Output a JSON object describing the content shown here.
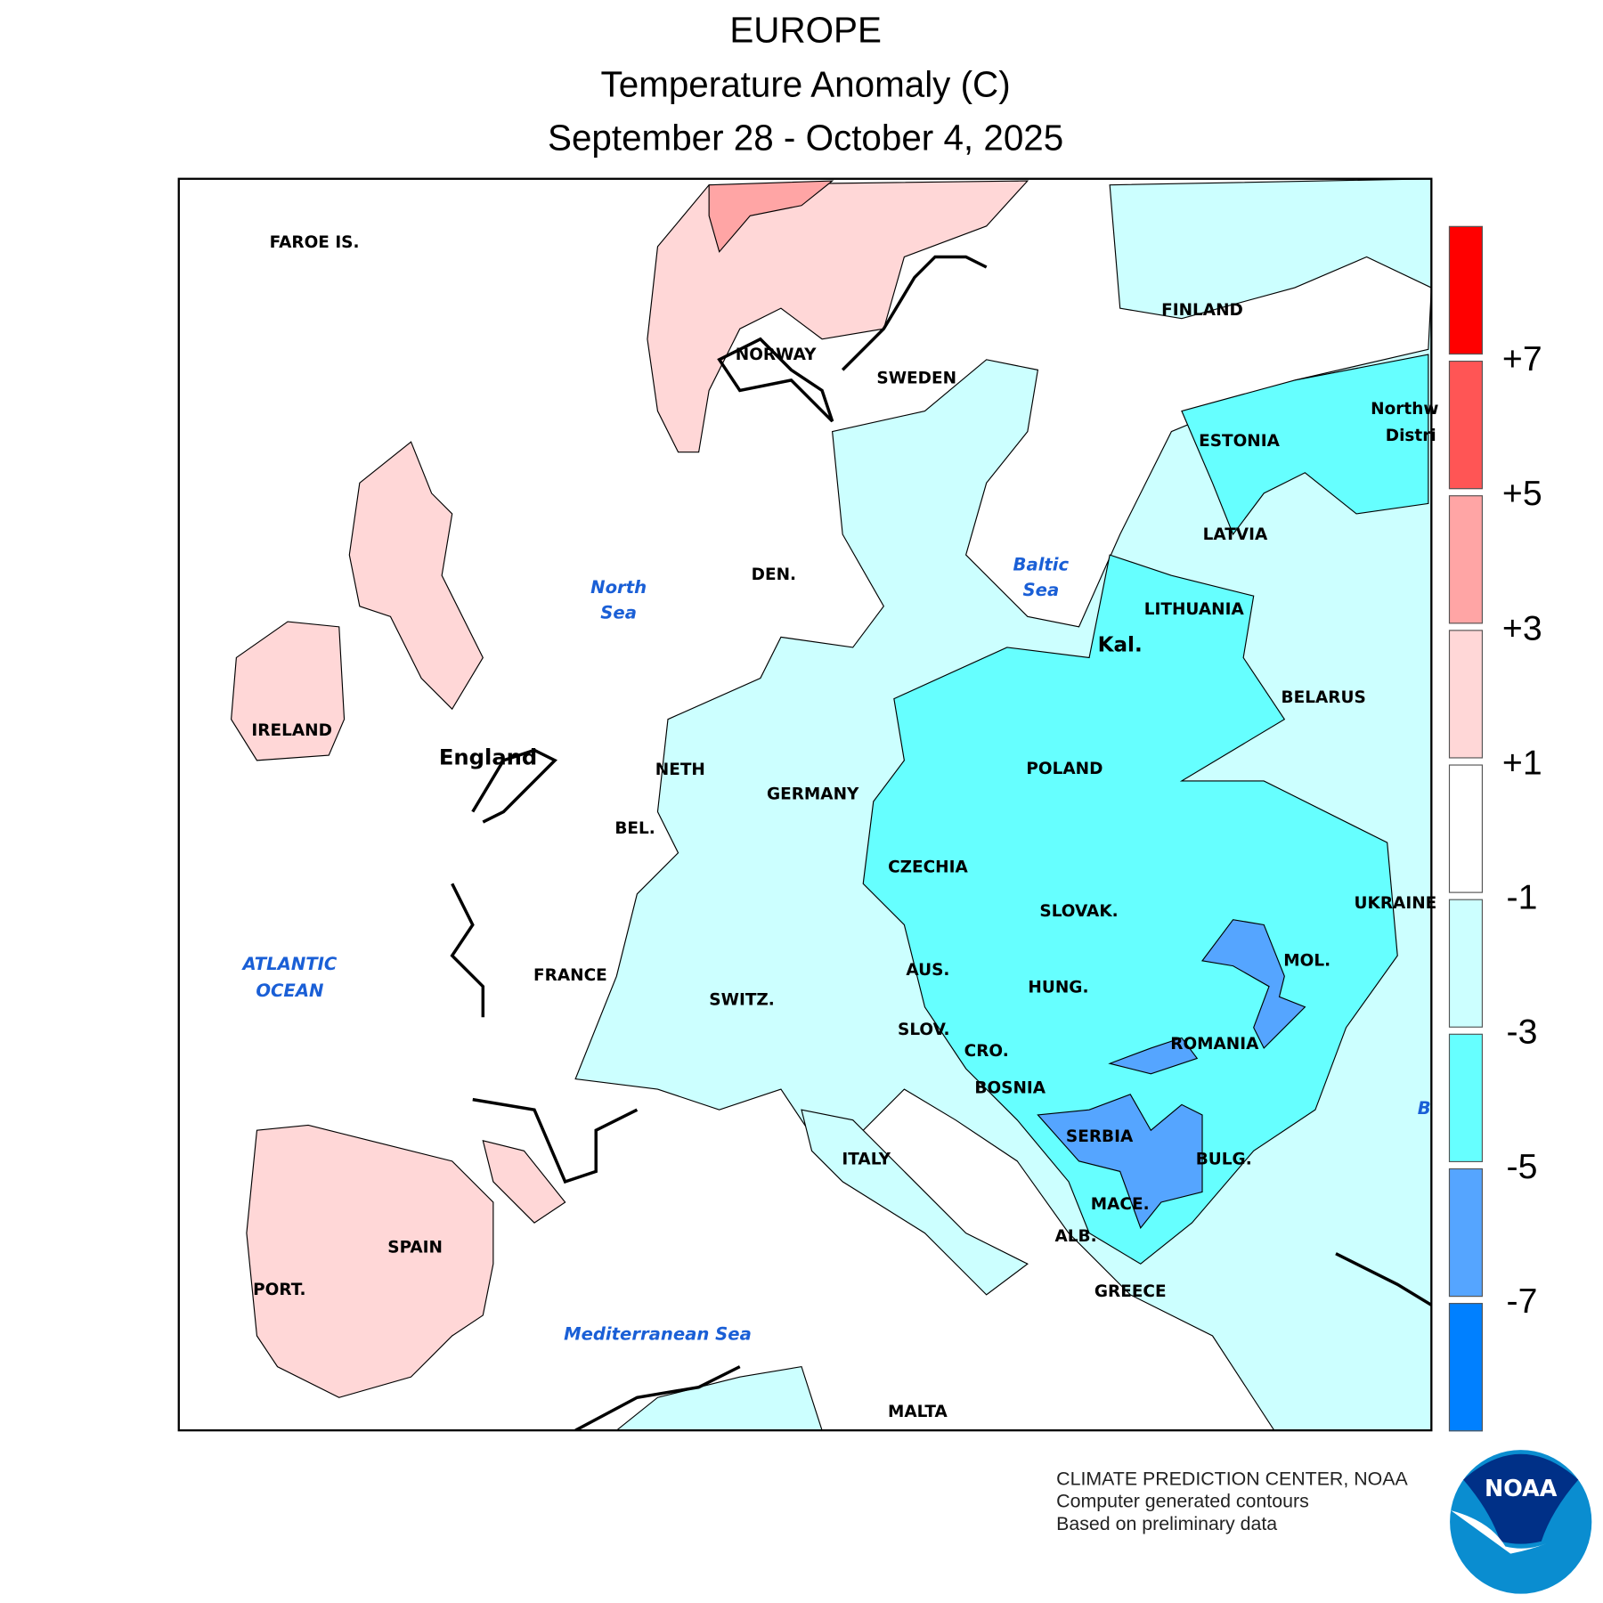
{
  "title": {
    "line1": "EUROPE",
    "line2": "Temperature Anomaly (C)",
    "line3": "September 28 - October 4, 2025"
  },
  "legend": {
    "colors": [
      "#ff0000",
      "#ff5555",
      "#ffa5a5",
      "#ffd7d7",
      "#ffffff",
      "#ccffff",
      "#66ffff",
      "#55a5ff",
      "#0080ff"
    ],
    "labels": [
      "+7",
      "+5",
      "+3",
      "+1",
      "-1",
      "-3",
      "-5",
      "-7"
    ]
  },
  "map": {
    "countries": [
      "FAROE IS.",
      "NORWAY",
      "SWEDEN",
      "FINLAND",
      "Northw",
      "Distri",
      "ESTONIA",
      "LATVIA",
      "LITHUANIA",
      "Kal.",
      "BELARUS",
      "POLAND",
      "GERMANY",
      "NETH",
      "BEL.",
      "DEN.",
      "CZECHIA",
      "SLOVAK.",
      "UKRAINE",
      "MOL.",
      "AUS.",
      "HUNG.",
      "SWITZ.",
      "FRANCE",
      "SLOV.",
      "CRO.",
      "ROMANIA",
      "BOSNIA",
      "SERBIA",
      "BULG.",
      "ITALY",
      "MACE.",
      "ALB.",
      "GREECE",
      "SPAIN",
      "PORT.",
      "MALTA",
      "IRELAND",
      "England"
    ],
    "seas": {
      "north_1": "North",
      "north_2": "Sea",
      "baltic_1": "Baltic",
      "baltic_2": "Sea",
      "atlantic_1": "ATLANTIC",
      "atlantic_2": "OCEAN",
      "med": "Mediterranean Sea",
      "black": "B"
    }
  },
  "credits": {
    "line1": "CLIMATE PREDICTION CENTER, NOAA",
    "line2": "Computer generated contours",
    "line3": "Based on preliminary data",
    "logo_text": "NOAA"
  }
}
